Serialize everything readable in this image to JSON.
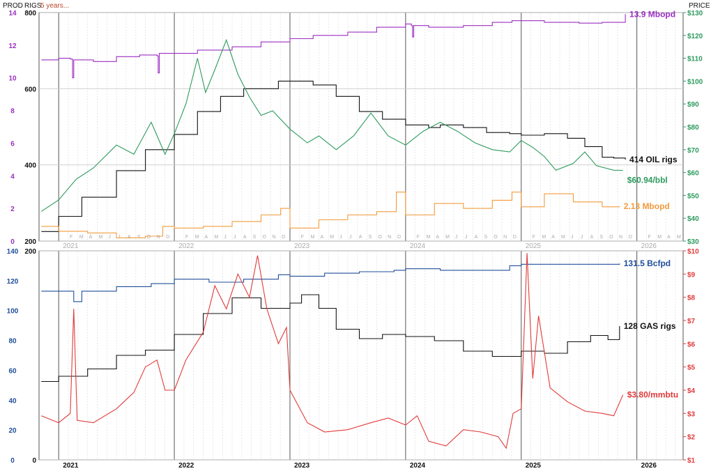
{
  "header": {
    "prod_label": "PROD",
    "rigs_label": "RIGS",
    "span_label": "5 years...",
    "price_label": "PRICE"
  },
  "chart_data": [
    {
      "type": "line",
      "panel": "oil",
      "x_labels": [
        "2021",
        "2022",
        "2023",
        "2024",
        "2025",
        "2026"
      ],
      "month_letters": [
        "J",
        "F",
        "M",
        "A",
        "M",
        "J",
        "J",
        "A",
        "S",
        "O",
        "N",
        "D"
      ],
      "axes": {
        "prod": {
          "min": 0,
          "max": 14,
          "ticks": [
            0,
            2,
            4,
            6,
            8,
            10,
            12,
            14
          ],
          "color": "#9b2fc1"
        },
        "rigs": {
          "min": 200,
          "max": 800,
          "ticks": [
            200,
            400,
            600,
            800
          ],
          "color": "#111111"
        },
        "price": {
          "min": 30,
          "max": 130,
          "ticks": [
            "$30",
            "$40",
            "$50",
            "$60",
            "$70",
            "$80",
            "$90",
            "$100",
            "$110",
            "$120",
            "$130"
          ],
          "color": "#2e9a5e"
        }
      },
      "series": [
        {
          "key": "production",
          "axis": "prod",
          "color": "#9b2fc1",
          "end_label": "13.9 Mbopd",
          "points": [
            [
              2020.85,
              11.1
            ],
            [
              2021.0,
              11.2
            ],
            [
              2021.1,
              11.15
            ],
            [
              2021.12,
              10.0
            ],
            [
              2021.13,
              11.1
            ],
            [
              2021.3,
              11.0
            ],
            [
              2021.5,
              11.3
            ],
            [
              2021.7,
              11.4
            ],
            [
              2021.85,
              11.35
            ],
            [
              2021.86,
              10.3
            ],
            [
              2021.87,
              11.5
            ],
            [
              2022.0,
              11.5
            ],
            [
              2022.2,
              11.7
            ],
            [
              2022.5,
              11.9
            ],
            [
              2022.75,
              12.2
            ],
            [
              2023.0,
              12.4
            ],
            [
              2023.2,
              12.6
            ],
            [
              2023.5,
              12.8
            ],
            [
              2023.75,
              13.1
            ],
            [
              2024.0,
              13.3
            ],
            [
              2024.05,
              13.2
            ],
            [
              2024.06,
              12.5
            ],
            [
              2024.07,
              13.2
            ],
            [
              2024.2,
              13.1
            ],
            [
              2024.5,
              13.2
            ],
            [
              2024.75,
              13.4
            ],
            [
              2024.92,
              13.5
            ],
            [
              2025.0,
              13.5
            ],
            [
              2025.2,
              13.4
            ],
            [
              2025.5,
              13.35
            ],
            [
              2025.7,
              13.4
            ],
            [
              2025.9,
              13.9
            ]
          ]
        },
        {
          "key": "oil_rigs",
          "axis": "rigs",
          "color": "#111111",
          "end_label": "414 OIL rigs",
          "points": [
            [
              2020.85,
              225
            ],
            [
              2021.0,
              265
            ],
            [
              2021.2,
              315
            ],
            [
              2021.5,
              385
            ],
            [
              2021.75,
              440
            ],
            [
              2022.0,
              480
            ],
            [
              2022.2,
              540
            ],
            [
              2022.4,
              580
            ],
            [
              2022.6,
              600
            ],
            [
              2022.8,
              600
            ],
            [
              2022.9,
              620
            ],
            [
              2023.0,
              620
            ],
            [
              2023.2,
              610
            ],
            [
              2023.4,
              580
            ],
            [
              2023.6,
              540
            ],
            [
              2023.8,
              520
            ],
            [
              2024.0,
              505
            ],
            [
              2024.2,
              498
            ],
            [
              2024.3,
              505
            ],
            [
              2024.5,
              498
            ],
            [
              2024.7,
              485
            ],
            [
              2024.9,
              482
            ],
            [
              2025.0,
              478
            ],
            [
              2025.2,
              482
            ],
            [
              2025.4,
              470
            ],
            [
              2025.55,
              448
            ],
            [
              2025.7,
              420
            ],
            [
              2025.8,
              418
            ],
            [
              2025.9,
              414
            ]
          ]
        },
        {
          "key": "oil_price",
          "axis": "price",
          "color": "#2e9a5e",
          "end_label": "$60.94/bbl",
          "points": [
            [
              2020.85,
              43
            ],
            [
              2021.0,
              48
            ],
            [
              2021.15,
              57
            ],
            [
              2021.3,
              62
            ],
            [
              2021.5,
              72
            ],
            [
              2021.65,
              68
            ],
            [
              2021.8,
              82
            ],
            [
              2021.92,
              68
            ],
            [
              2022.0,
              77
            ],
            [
              2022.1,
              90
            ],
            [
              2022.2,
              110
            ],
            [
              2022.27,
              95
            ],
            [
              2022.35,
              105
            ],
            [
              2022.45,
              118
            ],
            [
              2022.55,
              103
            ],
            [
              2022.65,
              93
            ],
            [
              2022.75,
              85
            ],
            [
              2022.85,
              87
            ],
            [
              2023.0,
              79
            ],
            [
              2023.15,
              73
            ],
            [
              2023.25,
              76
            ],
            [
              2023.4,
              70
            ],
            [
              2023.55,
              76
            ],
            [
              2023.7,
              86
            ],
            [
              2023.85,
              76
            ],
            [
              2024.0,
              72
            ],
            [
              2024.15,
              78
            ],
            [
              2024.3,
              82
            ],
            [
              2024.45,
              78
            ],
            [
              2024.6,
              73
            ],
            [
              2024.75,
              70
            ],
            [
              2024.9,
              69
            ],
            [
              2025.0,
              74
            ],
            [
              2025.1,
              71
            ],
            [
              2025.2,
              67
            ],
            [
              2025.3,
              61
            ],
            [
              2025.45,
              64
            ],
            [
              2025.55,
              69
            ],
            [
              2025.65,
              63
            ],
            [
              2025.8,
              61
            ],
            [
              2025.88,
              60.94
            ]
          ]
        },
        {
          "key": "oil_imports",
          "axis": "prod",
          "color": "#f29b3c",
          "end_label": "2.13 Mbopd",
          "points": [
            [
              2020.85,
              0.9
            ],
            [
              2021.0,
              0.6
            ],
            [
              2021.25,
              0.5
            ],
            [
              2021.5,
              0.2
            ],
            [
              2021.75,
              0.3
            ],
            [
              2021.9,
              0.9
            ],
            [
              2022.0,
              0.8
            ],
            [
              2022.25,
              0.9
            ],
            [
              2022.5,
              1.2
            ],
            [
              2022.75,
              1.6
            ],
            [
              2022.92,
              2.0
            ],
            [
              2023.0,
              0.8
            ],
            [
              2023.25,
              1.3
            ],
            [
              2023.5,
              1.6
            ],
            [
              2023.75,
              1.8
            ],
            [
              2023.92,
              3.0
            ],
            [
              2024.0,
              1.6
            ],
            [
              2024.25,
              2.3
            ],
            [
              2024.5,
              2.0
            ],
            [
              2024.75,
              2.5
            ],
            [
              2024.92,
              3.0
            ],
            [
              2025.0,
              2.1
            ],
            [
              2025.2,
              2.9
            ],
            [
              2025.45,
              2.4
            ],
            [
              2025.7,
              2.1
            ],
            [
              2025.85,
              2.13
            ]
          ]
        }
      ]
    },
    {
      "type": "line",
      "panel": "gas",
      "x_labels": [
        "2021",
        "2022",
        "2023",
        "2024",
        "2025",
        "2026"
      ],
      "axes": {
        "prod": {
          "min": 0,
          "max": 140,
          "ticks": [
            0,
            20,
            40,
            60,
            80,
            100,
            120,
            140
          ],
          "color": "#1f4e9a"
        },
        "rigs": {
          "min": 0,
          "max": 200,
          "ticks": [
            0,
            200
          ],
          "color": "#111111"
        },
        "price": {
          "min": 1,
          "max": 10,
          "ticks": [
            "$1",
            "$2",
            "$3",
            "$4",
            "$5",
            "$6",
            "$7",
            "$8",
            "$9",
            "$10"
          ],
          "color": "#e03a3a"
        }
      },
      "series": [
        {
          "key": "gas_production",
          "axis": "prod",
          "color": "#1f4e9a",
          "end_label": "131.5 Bcfpd",
          "points": [
            [
              2020.85,
              113
            ],
            [
              2021.0,
              113
            ],
            [
              2021.12,
              113
            ],
            [
              2021.13,
              106
            ],
            [
              2021.2,
              113
            ],
            [
              2021.5,
              116
            ],
            [
              2021.8,
              118
            ],
            [
              2022.0,
              121
            ],
            [
              2022.3,
              119
            ],
            [
              2022.6,
              121
            ],
            [
              2022.9,
              124
            ],
            [
              2023.0,
              123
            ],
            [
              2023.3,
              125
            ],
            [
              2023.6,
              126
            ],
            [
              2023.9,
              127
            ],
            [
              2024.0,
              128
            ],
            [
              2024.3,
              127
            ],
            [
              2024.6,
              127
            ],
            [
              2024.9,
              130
            ],
            [
              2025.0,
              131
            ],
            [
              2025.3,
              131
            ],
            [
              2025.6,
              131
            ],
            [
              2025.85,
              131.5
            ]
          ]
        },
        {
          "key": "gas_rigs",
          "axis": "rigs",
          "color": "#111111",
          "end_label": "128 GAS rigs",
          "points": [
            [
              2020.85,
              75
            ],
            [
              2021.0,
              80
            ],
            [
              2021.25,
              87
            ],
            [
              2021.5,
              100
            ],
            [
              2021.75,
              105
            ],
            [
              2022.0,
              120
            ],
            [
              2022.25,
              140
            ],
            [
              2022.5,
              155
            ],
            [
              2022.65,
              155
            ],
            [
              2022.75,
              145
            ],
            [
              2023.0,
              150
            ],
            [
              2023.1,
              158
            ],
            [
              2023.25,
              145
            ],
            [
              2023.4,
              125
            ],
            [
              2023.6,
              116
            ],
            [
              2023.8,
              120
            ],
            [
              2024.0,
              118
            ],
            [
              2024.25,
              114
            ],
            [
              2024.5,
              104
            ],
            [
              2024.75,
              99
            ],
            [
              2025.0,
              104
            ],
            [
              2025.2,
              102
            ],
            [
              2025.4,
              113
            ],
            [
              2025.6,
              119
            ],
            [
              2025.75,
              115
            ],
            [
              2025.85,
              128
            ]
          ]
        },
        {
          "key": "gas_price",
          "axis": "price",
          "color": "#e03a3a",
          "end_label": "$3.80/mmbtu",
          "points": [
            [
              2020.85,
              2.9
            ],
            [
              2021.0,
              2.6
            ],
            [
              2021.1,
              3.0
            ],
            [
              2021.13,
              7.5
            ],
            [
              2021.16,
              2.7
            ],
            [
              2021.3,
              2.6
            ],
            [
              2021.5,
              3.2
            ],
            [
              2021.65,
              3.9
            ],
            [
              2021.75,
              5.0
            ],
            [
              2021.85,
              5.3
            ],
            [
              2021.92,
              4.0
            ],
            [
              2022.0,
              4.0
            ],
            [
              2022.1,
              5.3
            ],
            [
              2022.25,
              6.5
            ],
            [
              2022.35,
              8.5
            ],
            [
              2022.45,
              7.5
            ],
            [
              2022.55,
              9.0
            ],
            [
              2022.65,
              8.0
            ],
            [
              2022.72,
              9.8
            ],
            [
              2022.8,
              7.5
            ],
            [
              2022.9,
              6.0
            ],
            [
              2022.97,
              6.7
            ],
            [
              2023.0,
              4.0
            ],
            [
              2023.15,
              2.6
            ],
            [
              2023.3,
              2.2
            ],
            [
              2023.5,
              2.3
            ],
            [
              2023.7,
              2.6
            ],
            [
              2023.85,
              2.8
            ],
            [
              2024.0,
              2.5
            ],
            [
              2024.1,
              2.9
            ],
            [
              2024.2,
              1.8
            ],
            [
              2024.35,
              1.6
            ],
            [
              2024.5,
              2.3
            ],
            [
              2024.65,
              2.2
            ],
            [
              2024.8,
              2.0
            ],
            [
              2024.87,
              1.5
            ],
            [
              2024.93,
              3.0
            ],
            [
              2025.0,
              3.2
            ],
            [
              2025.05,
              9.9
            ],
            [
              2025.1,
              4.5
            ],
            [
              2025.15,
              7.2
            ],
            [
              2025.25,
              4.1
            ],
            [
              2025.4,
              3.5
            ],
            [
              2025.55,
              3.1
            ],
            [
              2025.7,
              3.0
            ],
            [
              2025.8,
              2.9
            ],
            [
              2025.88,
              3.8
            ]
          ]
        }
      ]
    }
  ]
}
